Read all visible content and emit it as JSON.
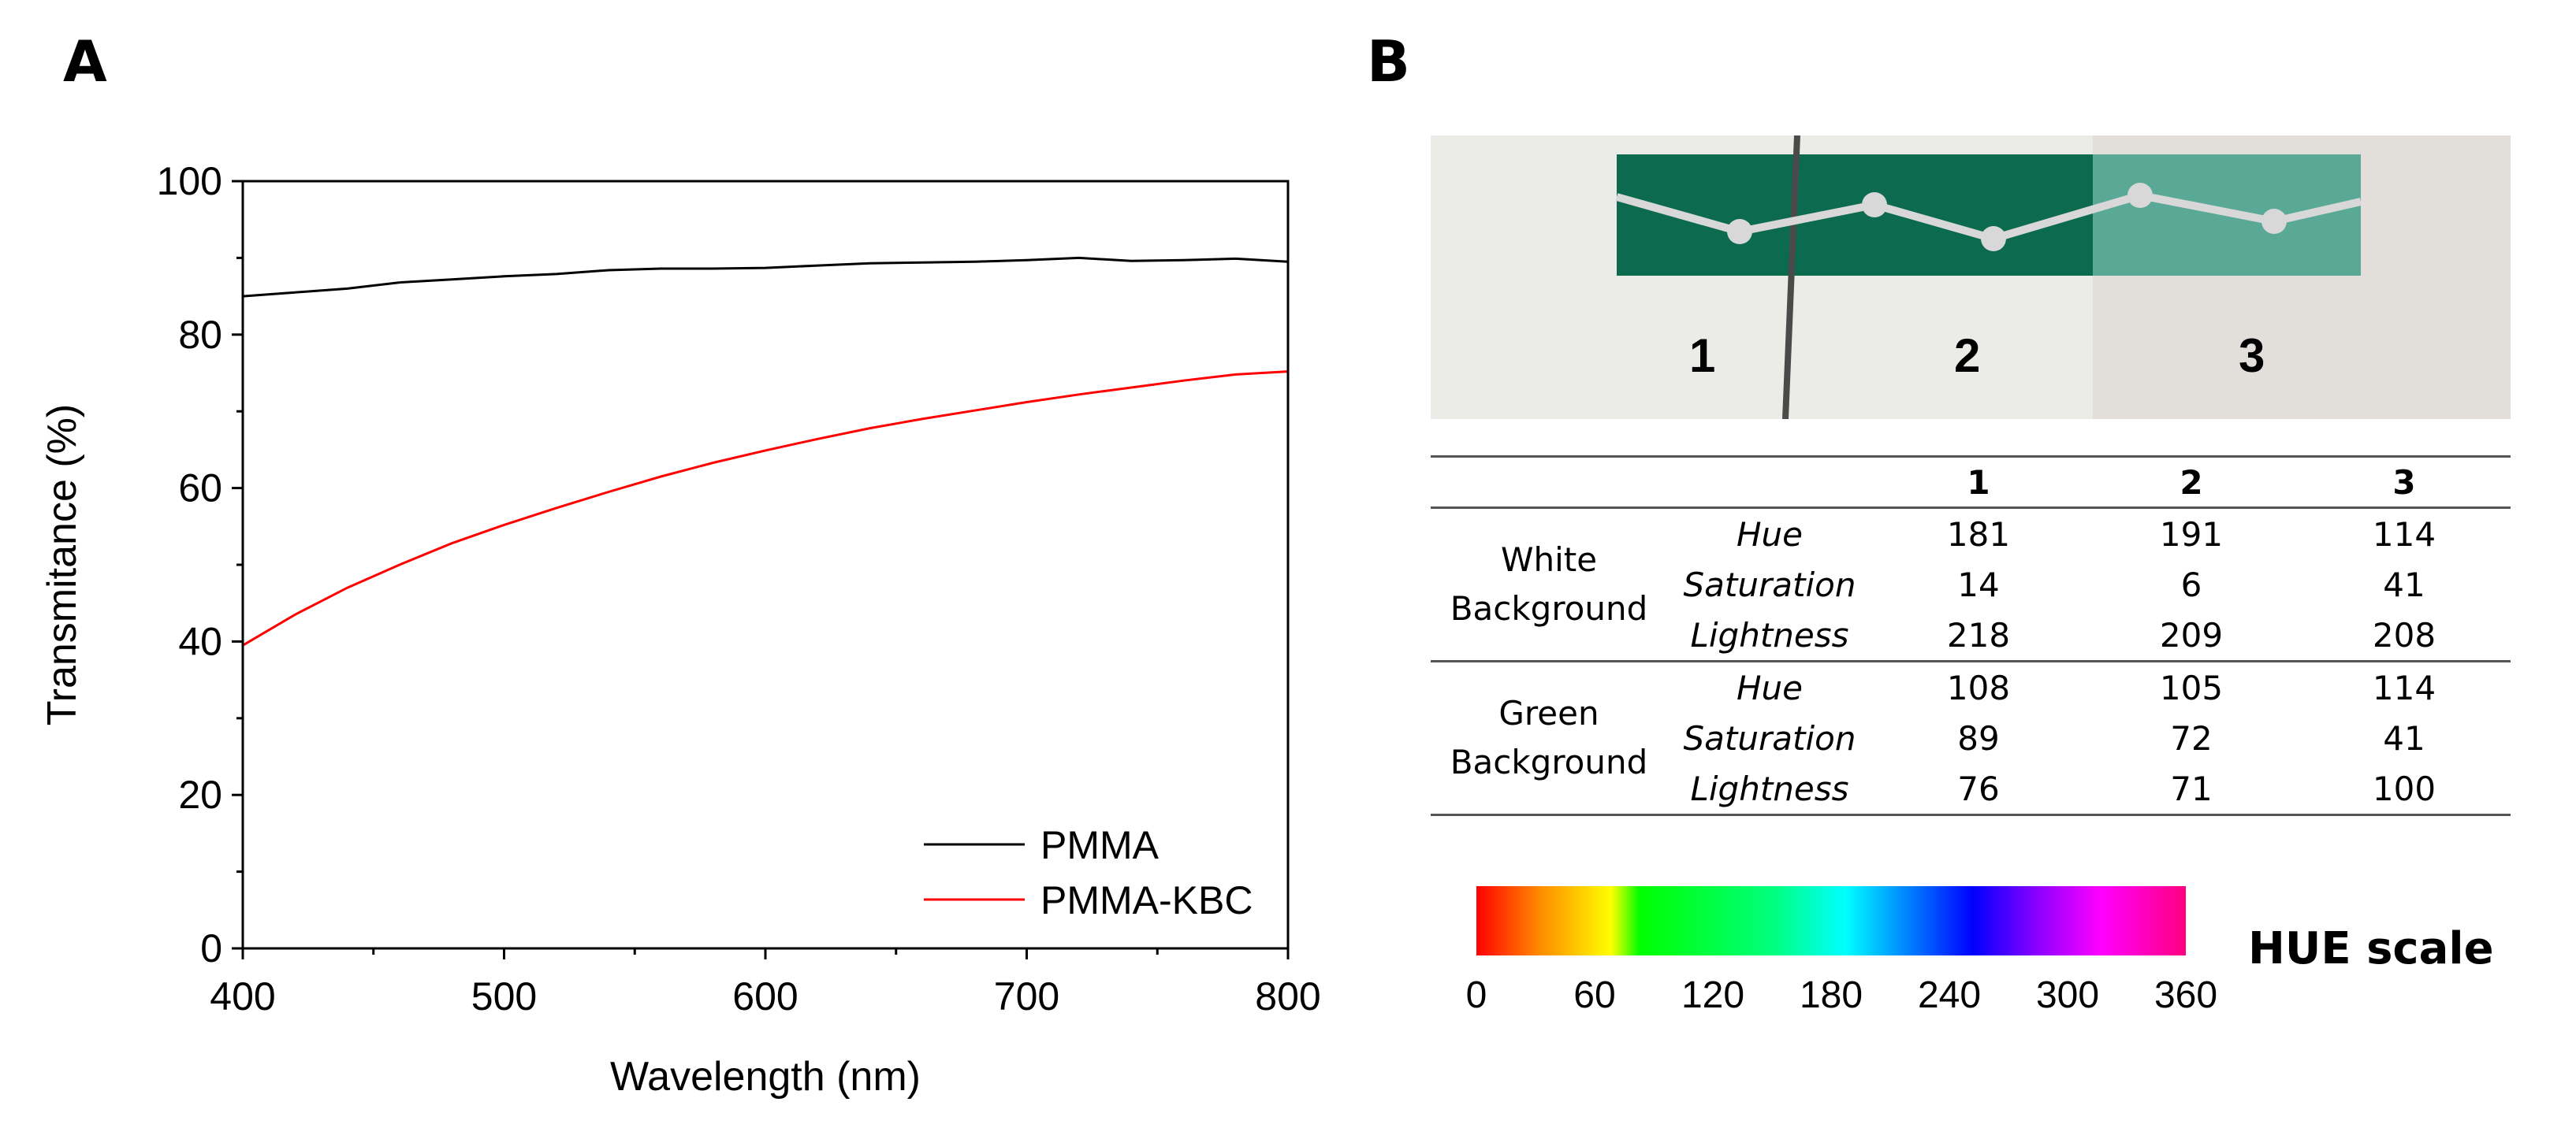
{
  "panels": {
    "a": "A",
    "b": "B"
  },
  "chart_data": {
    "type": "line",
    "xlabel": "Wavelength (nm)",
    "ylabel": "Transmitance (%)",
    "xlim": [
      400,
      800
    ],
    "ylim": [
      0,
      100
    ],
    "xticks": [
      400,
      500,
      600,
      700,
      800
    ],
    "yticks": [
      0,
      20,
      40,
      60,
      80,
      100
    ],
    "grid": false,
    "legend": "bottom-right",
    "x": [
      400,
      420,
      440,
      460,
      480,
      500,
      520,
      540,
      560,
      580,
      600,
      620,
      640,
      660,
      680,
      700,
      720,
      740,
      760,
      780,
      800
    ],
    "series": [
      {
        "name": "PMMA",
        "color": "#000000",
        "values": [
          85.0,
          85.5,
          86.0,
          86.8,
          87.2,
          87.6,
          87.9,
          88.4,
          88.6,
          88.6,
          88.7,
          89.0,
          89.3,
          89.4,
          89.5,
          89.7,
          90.0,
          89.6,
          89.7,
          89.9,
          89.5
        ]
      },
      {
        "name": "PMMA-KBC",
        "color": "#ff0000",
        "values": [
          39.5,
          43.5,
          47.0,
          50.0,
          52.8,
          55.2,
          57.4,
          59.5,
          61.5,
          63.3,
          64.9,
          66.4,
          67.8,
          69.0,
          70.1,
          71.2,
          72.2,
          73.1,
          74.0,
          74.8,
          75.2
        ]
      }
    ]
  },
  "photo": {
    "labels": [
      "1",
      "2",
      "3"
    ]
  },
  "table": {
    "columns": [
      "1",
      "2",
      "3"
    ],
    "groups": [
      {
        "label_line1": "White",
        "label_line2": "Background",
        "rows": [
          {
            "param": "Hue",
            "values": [
              "181",
              "191",
              "114"
            ]
          },
          {
            "param": "Saturation",
            "values": [
              "14",
              "6",
              "41"
            ]
          },
          {
            "param": "Lightness",
            "values": [
              "218",
              "209",
              "208"
            ]
          }
        ]
      },
      {
        "label_line1": "Green",
        "label_line2": "Background",
        "rows": [
          {
            "param": "Hue",
            "values": [
              "108",
              "105",
              "114"
            ]
          },
          {
            "param": "Saturation",
            "values": [
              "89",
              "72",
              "41"
            ]
          },
          {
            "param": "Lightness",
            "values": [
              "76",
              "71",
              "100"
            ]
          }
        ]
      }
    ]
  },
  "hue_scale": {
    "title": "HUE scale",
    "ticks": [
      "0",
      "60",
      "120",
      "180",
      "240",
      "300",
      "360"
    ]
  }
}
